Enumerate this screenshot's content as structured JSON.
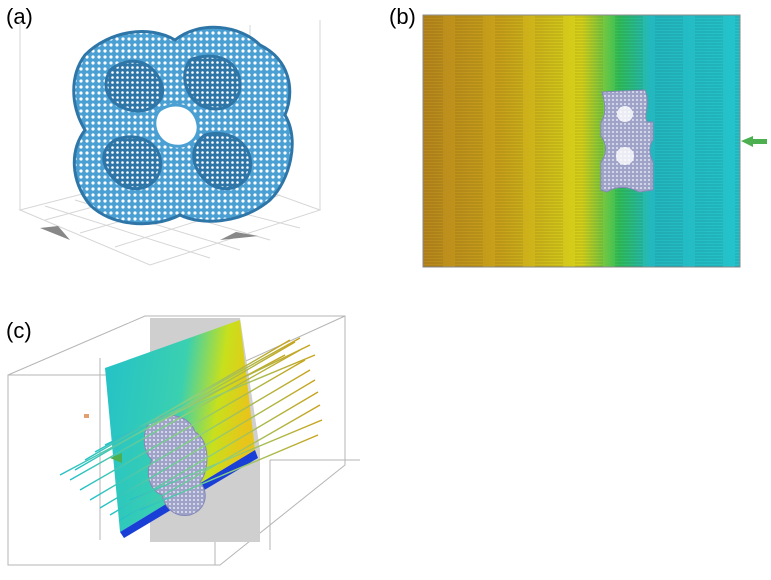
{
  "panels": [
    {
      "label": "(a)"
    },
    {
      "label": "(b)"
    },
    {
      "label": "(c)"
    }
  ],
  "colors": {
    "lattice_blue": "#4a9fd3",
    "lattice_dark": "#2f76a8",
    "lattice_grey": "#9fa3c8",
    "flow_orange": "#c69a1c",
    "flow_yellow": "#e9df1a",
    "flow_green": "#2fbf5b",
    "flow_cyan": "#23c1c9",
    "deep_blue": "#1a3fd6",
    "inlet_arrow": "#4caf50",
    "frame_grey": "#b5b5b5"
  }
}
